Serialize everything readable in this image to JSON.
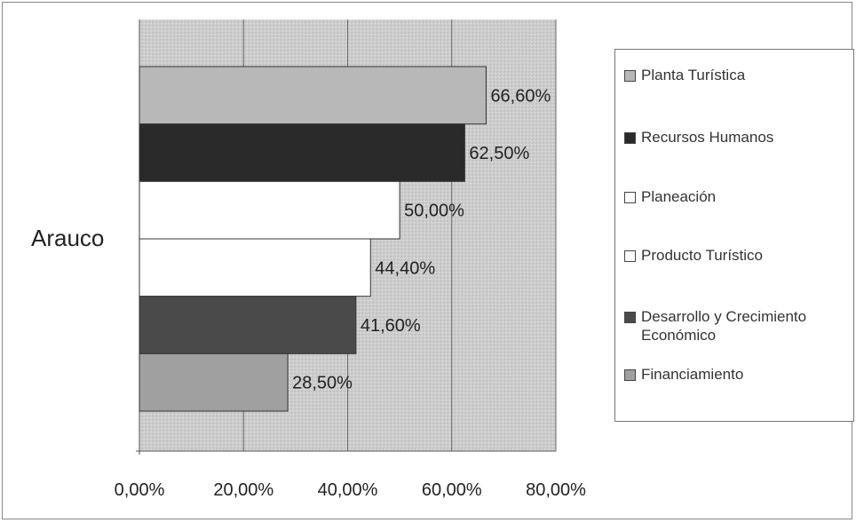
{
  "chart_data": {
    "type": "bar",
    "orientation": "horizontal",
    "categories": [
      "Arauco"
    ],
    "series": [
      {
        "name": "Planta Turística",
        "value": 66.6,
        "label": "66,60%",
        "color": "#b8b8b8"
      },
      {
        "name": "Recursos Humanos",
        "value": 62.5,
        "label": "62,50%",
        "color": "#2a2a2a"
      },
      {
        "name": "Planeación",
        "value": 50.0,
        "label": "50,00%",
        "color": "#ffffff"
      },
      {
        "name": "Producto Turístico",
        "value": 44.4,
        "label": "44,40%",
        "color": "#ffffff"
      },
      {
        "name": "Desarrollo y Crecimiento Económico",
        "value": 41.6,
        "label": "41,60%",
        "color": "#4a4a4a"
      },
      {
        "name": "Financiamiento",
        "value": 28.5,
        "label": "28,50%",
        "color": "#a0a0a0"
      }
    ],
    "xlim": [
      0,
      80
    ],
    "x_ticks": [
      "0,00%",
      "20,00%",
      "40,00%",
      "60,00%",
      "80,00%"
    ],
    "plot_background": "#cfcfcf",
    "grid": "vertical",
    "legend_position": "right"
  }
}
